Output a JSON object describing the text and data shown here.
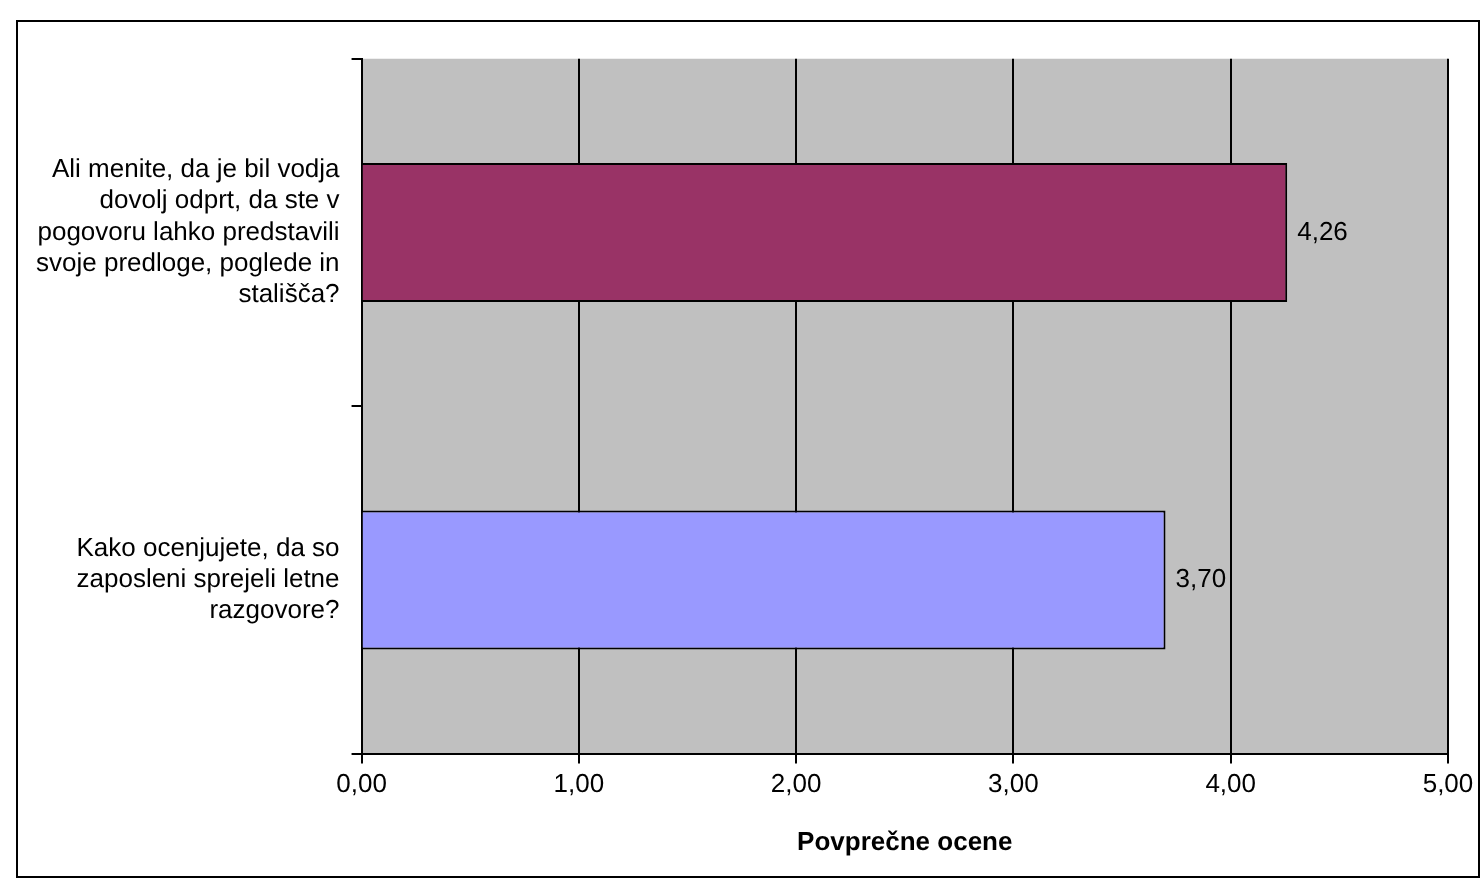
{
  "chart_data": {
    "type": "bar",
    "orientation": "horizontal",
    "categories": [
      "Ali menite, da je bil vodja dovolj odprt, da ste v pogovoru lahko predstavili svoje predloge, poglede in stališča?",
      "Kako ocenjujete, da so zaposleni sprejeli letne razgovore?"
    ],
    "values": [
      4.26,
      3.7
    ],
    "colors": [
      "#993366",
      "#9999ff"
    ],
    "value_labels": [
      "4,26",
      "3,70"
    ],
    "xlabel": "Povprečne ocene",
    "xlim": [
      0,
      5
    ],
    "xticks": [
      {
        "value": 0,
        "label": "0,00"
      },
      {
        "value": 1,
        "label": "1,00"
      },
      {
        "value": 2,
        "label": "2,00"
      },
      {
        "value": 3,
        "label": "3,00"
      },
      {
        "value": 4,
        "label": "4,00"
      },
      {
        "value": 5,
        "label": "5,00"
      }
    ],
    "grid": "x",
    "legend": false
  }
}
